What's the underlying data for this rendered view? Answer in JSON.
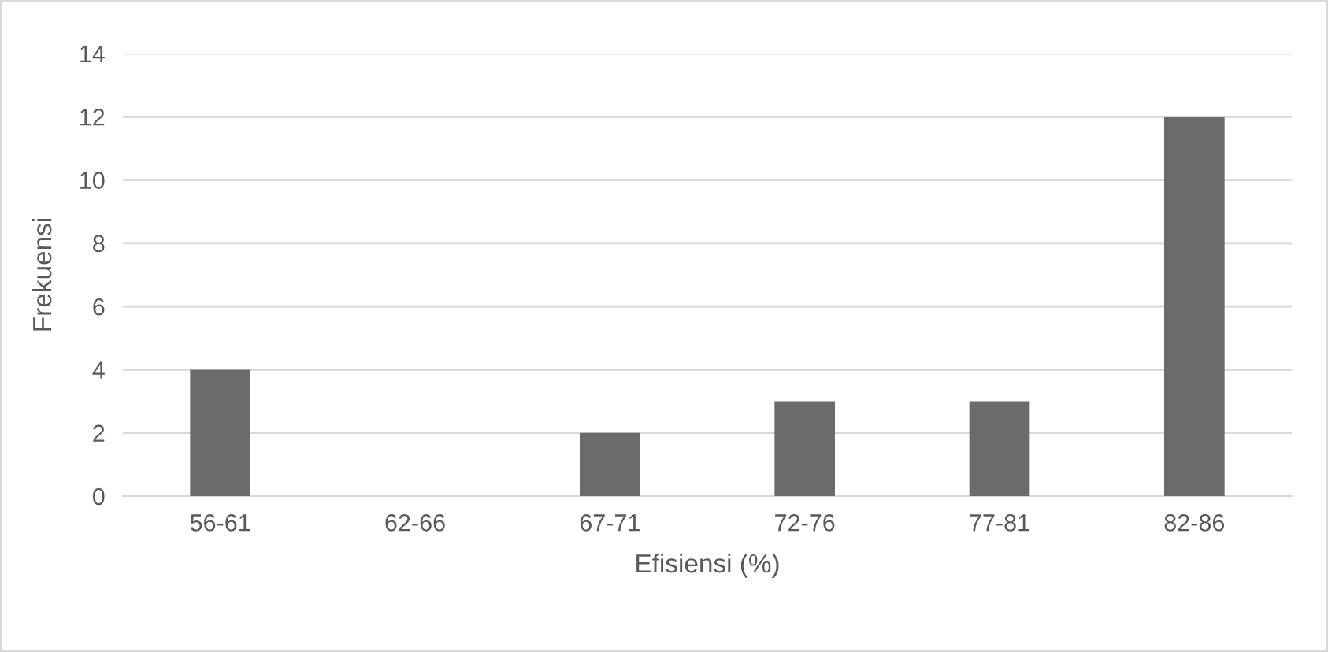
{
  "chart_data": {
    "type": "bar",
    "xlabel": "Efisiensi (%)",
    "ylabel": "Frekuensi",
    "categories": [
      "56-61",
      "62-66",
      "67-71",
      "72-76",
      "77-81",
      "82-86"
    ],
    "values": [
      4,
      0,
      2,
      3,
      3,
      12
    ],
    "color": "#6b6b6b",
    "ylim": [
      0,
      14
    ],
    "yticks": [
      0,
      2,
      4,
      6,
      8,
      10,
      12,
      14
    ],
    "grid": "y"
  }
}
